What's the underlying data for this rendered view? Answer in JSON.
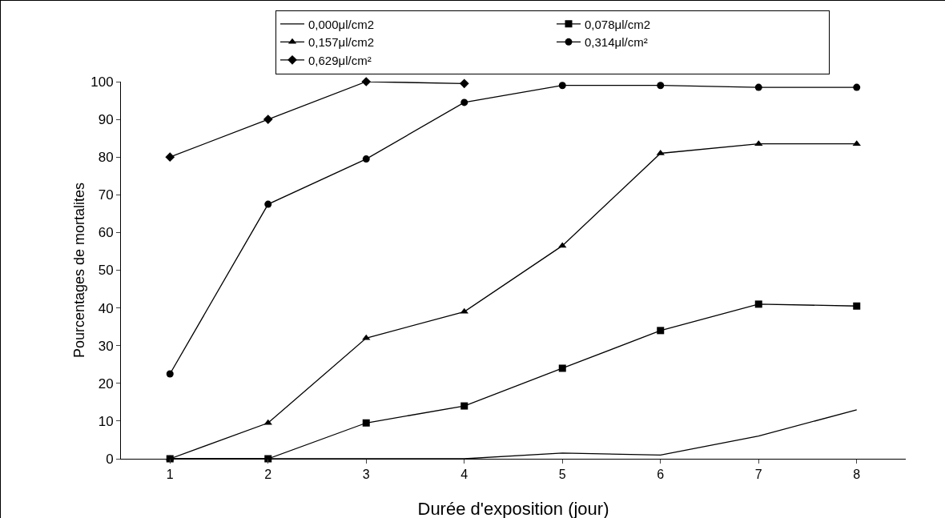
{
  "chart_data": {
    "type": "line",
    "xlabel": "Durée d'exposition (jour)",
    "ylabel": "Pourcentages de mortalites",
    "categories": [
      "1",
      "2",
      "3",
      "4",
      "5",
      "6",
      "7",
      "8"
    ],
    "series": [
      {
        "name": "0,000μl/cm2",
        "color": "#000000",
        "marker": "none",
        "values": [
          0,
          0,
          0,
          0,
          1.5,
          1,
          6,
          13
        ]
      },
      {
        "name": "0,078μl/cm2",
        "color": "#000000",
        "marker": "square",
        "values": [
          0,
          0,
          9.5,
          14,
          24,
          34,
          41,
          40.5
        ]
      },
      {
        "name": "0,157μl/cm2",
        "color": "#000000",
        "marker": "triangle",
        "values": [
          0,
          9.5,
          32,
          39,
          56.5,
          81,
          83.5,
          83.5
        ]
      },
      {
        "name": "0,314μl/cm²",
        "color": "#000000",
        "marker": "circle",
        "values": [
          22.5,
          67.5,
          79.5,
          94.5,
          99,
          99,
          98.5,
          98.5
        ]
      },
      {
        "name": "0,629μl/cm²",
        "color": "#000000",
        "marker": "diamond",
        "values": [
          80,
          90,
          100,
          99.5,
          null,
          null,
          null,
          null
        ]
      }
    ],
    "ylim": [
      0,
      100
    ],
    "yticks": [
      0,
      10,
      20,
      30,
      40,
      50,
      60,
      70,
      80,
      90,
      100
    ],
    "grid": false,
    "legend": "top",
    "line_style": "solid"
  }
}
